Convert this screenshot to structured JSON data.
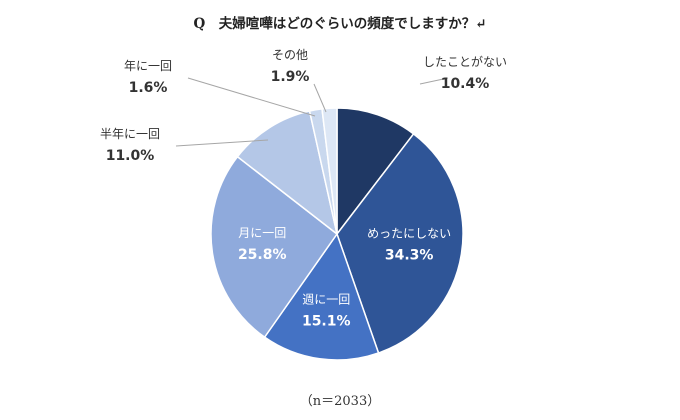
{
  "chart_data": {
    "type": "pie",
    "title": "Q　夫婦喧嘩はどのぐらいの頻度でしますか？↵",
    "note": "（n＝2033）",
    "slices": [
      {
        "label": "したことがない",
        "value": 10.4,
        "display": "10.4%",
        "color": "#1f3864"
      },
      {
        "label": "めったにしない",
        "value": 34.3,
        "display": "34.3%",
        "color": "#2f5597"
      },
      {
        "label": "週に一回",
        "value": 15.1,
        "display": "15.1%",
        "color": "#4472c4"
      },
      {
        "label": "月に一回",
        "value": 25.8,
        "display": "25.8%",
        "color": "#8faadc"
      },
      {
        "label": "半年に一回",
        "value": 11.0,
        "display": "11.0%",
        "color": "#b4c7e7"
      },
      {
        "label": "年に一回",
        "value": 1.6,
        "display": "1.6%",
        "color": "#c9d8ee"
      },
      {
        "label": "その他",
        "value": 1.9,
        "display": "1.9%",
        "color": "#dde7f5"
      }
    ]
  }
}
